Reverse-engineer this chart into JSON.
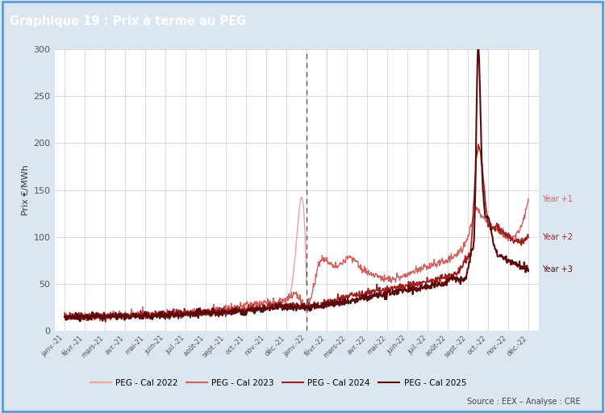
{
  "title": "Graphique 19 : Prix à terme au PEG",
  "ylabel": "Prix €/MWh",
  "source": "Source : EEX – Analyse : CRE",
  "dashed_line_x": 12,
  "ylim": [
    0,
    300
  ],
  "colors": {
    "cal2022": "#f0a0a0",
    "cal2023": "#d06060",
    "cal2024": "#a02020",
    "cal2025": "#5a0a0a"
  },
  "legend_labels": [
    "PEG - Cal 2022",
    "PEG - Cal 2023",
    "PEG - Cal 2024",
    "PEG - Cal 2025"
  ],
  "year_labels": [
    "Year +1",
    "Year +2",
    "Year +3"
  ],
  "x_tick_labels": [
    "janv.-21",
    "févr.-21",
    "mars-21",
    "avr.-21",
    "mai-21",
    "juin-21",
    "juil.-21",
    "août-21",
    "sept.-21",
    "oct.-21",
    "nov.-21",
    "déc.-21",
    "janv.-22",
    "févr.-22",
    "mars-22",
    "avr.-22",
    "mai-22",
    "juin-22",
    "juil.-22",
    "août-22",
    "sept.-22",
    "oct.-22",
    "nov.-22",
    "déc.-22"
  ],
  "header_bg": "#5b9bd5",
  "header_text_color": "#ffffff",
  "plot_bg": "#ffffff",
  "outer_bg": "#dce6f1",
  "border_color": "#5b9bd5",
  "yticks": [
    0,
    50,
    100,
    150,
    200,
    250,
    300
  ]
}
